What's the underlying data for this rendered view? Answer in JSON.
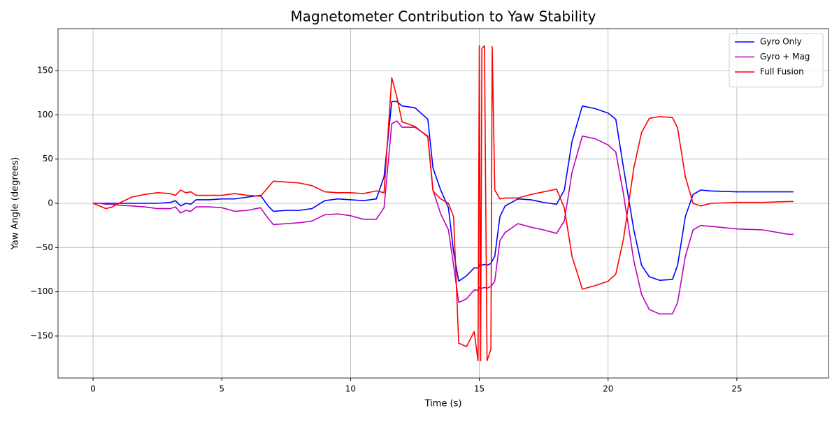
{
  "chart_data": {
    "type": "line",
    "title": "Magnetometer Contribution to Yaw Stability",
    "x_label": "Time (s)",
    "y_label": "Yaw Angle (degrees)",
    "x": [
      0,
      0.25,
      0.5,
      0.75,
      1,
      1.5,
      2,
      2.5,
      3,
      3.2,
      3.4,
      3.6,
      3.8,
      4,
      4.5,
      5,
      5.5,
      6,
      6.5,
      6.8,
      7,
      7.5,
      8,
      8.5,
      9,
      9.5,
      10,
      10.5,
      11,
      11.3,
      11.6,
      11.8,
      12,
      12.5,
      13,
      13.2,
      13.5,
      13.8,
      14,
      14.2,
      14.5,
      14.8,
      14.95,
      15.0,
      15.05,
      15.1,
      15.2,
      15.3,
      15.45,
      15.5,
      15.6,
      15.8,
      16,
      16.5,
      17,
      17.5,
      18,
      18.3,
      18.6,
      19,
      19.5,
      20,
      20.3,
      20.6,
      21,
      21.3,
      21.6,
      22,
      22.5,
      22.7,
      23,
      23.3,
      23.6,
      24,
      25,
      26,
      27,
      27.2
    ],
    "series": [
      {
        "name": "Gyro Only",
        "color": "#0000ff",
        "values": [
          0,
          0,
          0,
          0,
          0,
          0,
          0,
          0,
          1,
          3,
          -3,
          0,
          -1,
          4,
          4,
          5,
          5,
          7,
          9,
          -3,
          -9,
          -8,
          -8,
          -6,
          3,
          5,
          4,
          3,
          5,
          30,
          115,
          115,
          110,
          108,
          95,
          40,
          15,
          -5,
          -55,
          -88,
          -82,
          -73,
          -73,
          -70,
          -69,
          -70,
          -69,
          -70,
          -68,
          -65,
          -60,
          -15,
          -3,
          5,
          4,
          1,
          -1,
          15,
          70,
          110,
          107,
          102,
          95,
          40,
          -30,
          -70,
          -83,
          -87,
          -86,
          -70,
          -15,
          10,
          15,
          14,
          13,
          13,
          13,
          13
        ]
      },
      {
        "name": "Gyro + Mag",
        "color": "#bf00bf",
        "values": [
          0,
          0,
          -1,
          -1,
          -2,
          -3,
          -4,
          -6,
          -6,
          -4,
          -11,
          -8,
          -9,
          -4,
          -4,
          -5,
          -9,
          -8,
          -5,
          -17,
          -24,
          -23,
          -22,
          -20,
          -13,
          -12,
          -14,
          -18,
          -18,
          -5,
          90,
          93,
          86,
          86,
          76,
          15,
          -12,
          -30,
          -70,
          -112,
          -108,
          -98,
          -98,
          -95,
          -96,
          -96,
          -95,
          -96,
          -94,
          -92,
          -88,
          -42,
          -33,
          -23,
          -27,
          -30,
          -34,
          -20,
          35,
          76,
          73,
          66,
          58,
          10,
          -65,
          -103,
          -120,
          -125,
          -125,
          -112,
          -60,
          -30,
          -25,
          -26,
          -29,
          -30,
          -35,
          -35
        ]
      },
      {
        "name": "Full Fusion",
        "color": "#ff0000",
        "values": [
          0,
          -3,
          -6,
          -4,
          0,
          7,
          10,
          12,
          11,
          9,
          15,
          12,
          13,
          9,
          9,
          9,
          11,
          9,
          8,
          18,
          25,
          24,
          23,
          20,
          13,
          12,
          12,
          11,
          14,
          12,
          142,
          120,
          92,
          87,
          75,
          14,
          5,
          0,
          -15,
          -158,
          -162,
          -145,
          -178,
          178,
          -178,
          175,
          178,
          -178,
          -165,
          177,
          15,
          5,
          6,
          6,
          10,
          13,
          16,
          -5,
          -60,
          -97,
          -93,
          -88,
          -80,
          -40,
          40,
          80,
          96,
          98,
          97,
          85,
          30,
          0,
          -3,
          0,
          1,
          1,
          2,
          2
        ]
      }
    ],
    "xlim": [
      -1.36,
      28.56
    ],
    "ylim": [
      -197.4,
      197.4
    ],
    "xticks": [
      0,
      5,
      10,
      15,
      20,
      25
    ],
    "yticks": [
      {
        "value": -150,
        "label": "−150"
      },
      {
        "value": -100,
        "label": "−100"
      },
      {
        "value": -50,
        "label": "−50"
      },
      0,
      50,
      100,
      150
    ],
    "grid": true,
    "legend": "upper right"
  }
}
